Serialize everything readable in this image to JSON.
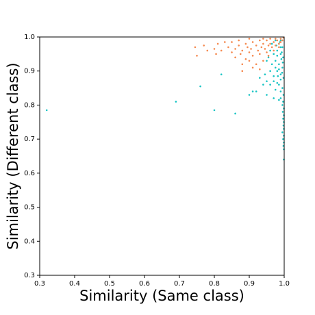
{
  "chart_data": {
    "type": "scatter",
    "x_label": "Similarity (Same class)",
    "y_label": "Similarity (Different class)",
    "xlim": [
      0.3,
      1.0
    ],
    "ylim": [
      0.3,
      1.0
    ],
    "xticks": [
      0.3,
      0.4,
      0.5,
      0.6,
      0.7,
      0.8,
      0.9,
      {
        "value": 1,
        "label": "1.0"
      }
    ],
    "yticks": [
      0.3,
      0.4,
      0.5,
      0.6,
      0.7,
      0.8,
      0.9,
      {
        "value": 1,
        "label": "1.0"
      }
    ],
    "series": [
      {
        "color": "#17c4c4",
        "x": [
          0.99,
          0.985,
          0.995,
          0.98,
          0.99,
          0.997,
          0.975,
          0.985,
          0.995,
          0.98,
          0.99,
          0.998,
          0.97,
          0.985,
          0.995,
          0.99,
          0.998,
          0.99,
          0.997,
          0.995,
          0.999,
          0.996,
          0.999,
          0.997,
          0.999,
          0.998,
          0.999,
          0.995,
          0.999,
          0.997,
          0.999,
          0.998,
          0.999,
          0.999,
          0.975,
          0.965,
          0.96,
          0.97,
          0.955,
          0.965,
          0.96,
          0.95,
          0.975,
          0.945,
          0.97,
          0.95,
          0.96,
          0.975,
          0.93,
          0.94,
          0.92,
          0.95,
          0.97,
          0.985,
          0.99,
          0.98,
          0.992,
          0.985,
          0.99,
          0.98,
          0.993,
          0.988,
          0.978,
          0.996,
          0.994,
          0.982,
          0.69,
          0.8,
          0.86,
          0.32,
          0.91,
          0.76,
          0.82,
          0.9
        ],
        "y": [
          0.99,
          0.98,
          0.97,
          0.96,
          0.95,
          0.94,
          0.93,
          0.92,
          0.91,
          0.9,
          0.89,
          0.88,
          0.87,
          0.86,
          0.85,
          0.84,
          0.83,
          0.82,
          0.81,
          0.8,
          0.79,
          0.78,
          0.77,
          0.76,
          0.75,
          0.74,
          0.73,
          0.72,
          0.71,
          0.7,
          0.69,
          0.68,
          0.67,
          0.64,
          0.99,
          0.98,
          0.96,
          0.95,
          0.94,
          0.92,
          0.9,
          0.93,
          0.91,
          0.89,
          0.885,
          0.87,
          0.86,
          0.845,
          0.88,
          0.86,
          0.84,
          0.83,
          0.82,
          0.815,
          0.97,
          0.945,
          0.935,
          0.905,
          0.875,
          0.865,
          0.955,
          0.985,
          0.975,
          0.925,
          0.895,
          0.885,
          0.81,
          0.785,
          0.775,
          0.785,
          0.84,
          0.855,
          0.89,
          0.83
        ]
      },
      {
        "color": "#f5894f",
        "x": [
          0.99,
          0.98,
          0.97,
          0.995,
          0.985,
          0.975,
          0.965,
          0.96,
          0.95,
          0.955,
          0.945,
          0.94,
          0.93,
          0.935,
          0.925,
          0.92,
          0.91,
          0.905,
          0.9,
          0.895,
          0.89,
          0.88,
          0.875,
          0.87,
          0.86,
          0.85,
          0.84,
          0.82,
          0.81,
          0.8,
          0.77,
          0.745,
          0.75,
          0.78,
          0.805,
          0.83,
          0.86,
          0.89,
          0.91,
          0.93,
          0.95,
          0.97,
          0.985,
          0.99,
          0.998,
          0.975,
          0.96,
          0.94,
          0.9,
          0.92,
          0.94,
          0.955,
          0.88,
          0.9,
          0.87,
          0.85,
          0.91,
          0.93,
          0.88
        ],
        "y": [
          0.995,
          0.99,
          0.985,
          0.99,
          0.98,
          0.975,
          0.97,
          0.98,
          0.99,
          0.975,
          0.965,
          0.98,
          0.99,
          0.97,
          0.96,
          0.975,
          0.985,
          0.965,
          0.955,
          0.97,
          0.98,
          0.96,
          0.95,
          0.975,
          0.965,
          0.955,
          0.97,
          0.96,
          0.98,
          0.965,
          0.975,
          0.97,
          0.945,
          0.96,
          0.95,
          0.985,
          0.94,
          0.935,
          0.945,
          0.95,
          0.955,
          0.96,
          0.97,
          0.985,
          0.998,
          0.995,
          0.995,
          0.995,
          0.93,
          0.92,
          0.93,
          0.945,
          0.92,
          0.995,
          0.99,
          0.985,
          0.91,
          0.905,
          0.9
        ]
      }
    ]
  }
}
